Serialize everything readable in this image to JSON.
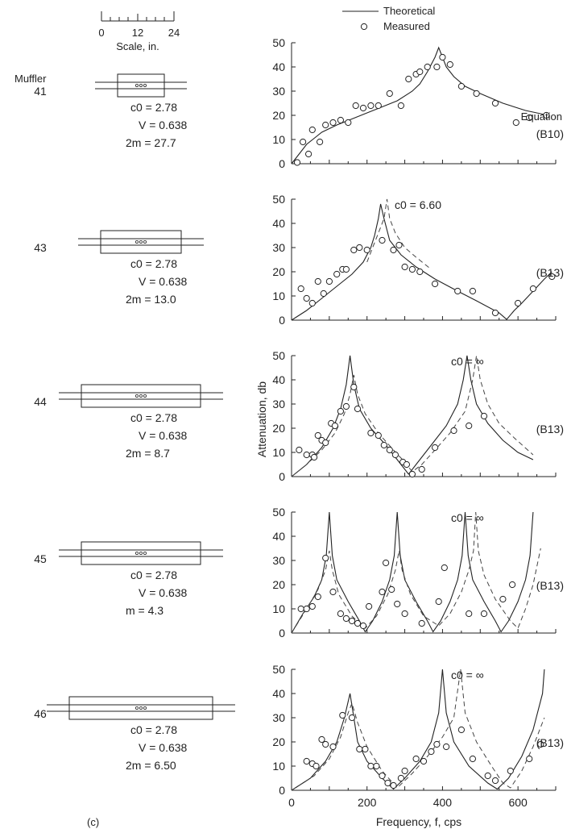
{
  "legend": {
    "theoretical": "Theoretical",
    "measured": "Measured"
  },
  "scale": {
    "ticks": [
      "0",
      "12",
      "24"
    ],
    "label": "Scale, in."
  },
  "muffler_heading": "Muffler",
  "panel_label": "(c)",
  "axes": {
    "ylabel": "Attenuation, db",
    "xlabel": "Frequency, f, cps",
    "xticks": [
      "0",
      "200",
      "400",
      "600"
    ],
    "yticks": [
      "0",
      "10",
      "20",
      "30",
      "40",
      "50"
    ],
    "ylim": [
      0,
      50
    ],
    "xlim": [
      0,
      700
    ]
  },
  "chart_data": [
    {
      "type": "scatter",
      "muffler": "41",
      "params": [
        "c0 = 2.78",
        "V = 0.638",
        "2m = 27.7"
      ],
      "equation": [
        "Equation",
        "(B10)"
      ],
      "annotation": "",
      "theory": [
        [
          0,
          0
        ],
        [
          20,
          4
        ],
        [
          40,
          8
        ],
        [
          60,
          10.5
        ],
        [
          80,
          13
        ],
        [
          120,
          16
        ],
        [
          160,
          18.5
        ],
        [
          200,
          21
        ],
        [
          240,
          23.5
        ],
        [
          280,
          26
        ],
        [
          320,
          30
        ],
        [
          340,
          33
        ],
        [
          360,
          38
        ],
        [
          380,
          44
        ],
        [
          390,
          48
        ],
        [
          400,
          44
        ],
        [
          410,
          40
        ],
        [
          430,
          36
        ],
        [
          460,
          32
        ],
        [
          500,
          29
        ],
        [
          560,
          25
        ],
        [
          620,
          22
        ],
        [
          680,
          20
        ]
      ],
      "dashed": [],
      "measured": [
        [
          15,
          0.5
        ],
        [
          30,
          9
        ],
        [
          45,
          4
        ],
        [
          55,
          14
        ],
        [
          75,
          9
        ],
        [
          90,
          16
        ],
        [
          110,
          17
        ],
        [
          130,
          18
        ],
        [
          150,
          17
        ],
        [
          170,
          24
        ],
        [
          190,
          23
        ],
        [
          210,
          24
        ],
        [
          230,
          24
        ],
        [
          260,
          29
        ],
        [
          290,
          24
        ],
        [
          310,
          35
        ],
        [
          330,
          37
        ],
        [
          340,
          38
        ],
        [
          360,
          40
        ],
        [
          385,
          40
        ],
        [
          400,
          44
        ],
        [
          420,
          41
        ],
        [
          450,
          32
        ],
        [
          490,
          29
        ],
        [
          540,
          25
        ],
        [
          595,
          17
        ],
        [
          630,
          19
        ],
        [
          675,
          20
        ]
      ]
    },
    {
      "type": "scatter",
      "muffler": "43",
      "params": [
        "c0 = 2.78",
        "V = 0.638",
        "2m = 13.0"
      ],
      "equation": [
        "",
        "(B13)"
      ],
      "annotation": "c0 = 6.60",
      "theory": [
        [
          0,
          0
        ],
        [
          40,
          4
        ],
        [
          80,
          9
        ],
        [
          120,
          14
        ],
        [
          160,
          19
        ],
        [
          190,
          24
        ],
        [
          210,
          30
        ],
        [
          220,
          35
        ],
        [
          230,
          42
        ],
        [
          236,
          48
        ],
        [
          245,
          42
        ],
        [
          260,
          33
        ],
        [
          290,
          27
        ],
        [
          330,
          22
        ],
        [
          380,
          17
        ],
        [
          440,
          12
        ],
        [
          490,
          8
        ],
        [
          550,
          3
        ],
        [
          570,
          0.3
        ],
        [
          590,
          4
        ],
        [
          610,
          7
        ],
        [
          640,
          12
        ],
        [
          670,
          17
        ],
        [
          690,
          20
        ]
      ],
      "dashed": [
        [
          200,
          24
        ],
        [
          215,
          30
        ],
        [
          230,
          36
        ],
        [
          245,
          42
        ],
        [
          253,
          50
        ],
        [
          260,
          42
        ],
        [
          275,
          36
        ],
        [
          300,
          30
        ],
        [
          330,
          26
        ],
        [
          370,
          21
        ]
      ],
      "measured": [
        [
          25,
          13
        ],
        [
          40,
          9
        ],
        [
          55,
          7
        ],
        [
          70,
          16
        ],
        [
          85,
          11
        ],
        [
          100,
          16
        ],
        [
          120,
          19
        ],
        [
          135,
          21
        ],
        [
          145,
          21
        ],
        [
          165,
          29
        ],
        [
          180,
          30
        ],
        [
          200,
          29
        ],
        [
          240,
          33
        ],
        [
          270,
          29
        ],
        [
          285,
          31
        ],
        [
          300,
          22
        ],
        [
          320,
          21
        ],
        [
          340,
          20
        ],
        [
          380,
          15
        ],
        [
          440,
          12
        ],
        [
          480,
          12
        ],
        [
          540,
          3
        ],
        [
          600,
          7
        ],
        [
          640,
          13
        ],
        [
          690,
          18
        ]
      ]
    },
    {
      "type": "scatter",
      "muffler": "44",
      "params": [
        "c0 = 2.78",
        "V = 0.638",
        "2m = 8.7"
      ],
      "equation": [
        "",
        "(B13)"
      ],
      "annotation": "c0 = ∞",
      "theory": [
        [
          0,
          0
        ],
        [
          40,
          5
        ],
        [
          80,
          12
        ],
        [
          110,
          20
        ],
        [
          130,
          28
        ],
        [
          145,
          38
        ],
        [
          155,
          50
        ],
        [
          165,
          38
        ],
        [
          180,
          28
        ],
        [
          210,
          20
        ],
        [
          250,
          13
        ],
        [
          290,
          5
        ],
        [
          310,
          1
        ],
        [
          330,
          5
        ],
        [
          370,
          13
        ],
        [
          410,
          21
        ],
        [
          440,
          30
        ],
        [
          455,
          40
        ],
        [
          465,
          50
        ],
        [
          475,
          40
        ],
        [
          490,
          30
        ],
        [
          520,
          22
        ],
        [
          560,
          15
        ],
        [
          600,
          10
        ],
        [
          640,
          7
        ]
      ],
      "dashed": [
        [
          0,
          0
        ],
        [
          40,
          5
        ],
        [
          80,
          11
        ],
        [
          115,
          18
        ],
        [
          140,
          26
        ],
        [
          155,
          34
        ],
        [
          165,
          42
        ],
        [
          175,
          34
        ],
        [
          195,
          26
        ],
        [
          230,
          18
        ],
        [
          270,
          11
        ],
        [
          300,
          6
        ],
        [
          320,
          2
        ],
        [
          345,
          5
        ],
        [
          380,
          11
        ],
        [
          420,
          18
        ],
        [
          460,
          27
        ],
        [
          480,
          40
        ],
        [
          490,
          50
        ],
        [
          500,
          40
        ],
        [
          520,
          30
        ],
        [
          550,
          22
        ],
        [
          590,
          16
        ],
        [
          640,
          9
        ]
      ],
      "measured": [
        [
          20,
          11
        ],
        [
          40,
          9
        ],
        [
          55,
          9
        ],
        [
          60,
          8
        ],
        [
          70,
          17
        ],
        [
          80,
          15
        ],
        [
          90,
          14
        ],
        [
          105,
          22
        ],
        [
          115,
          21
        ],
        [
          130,
          27
        ],
        [
          145,
          29
        ],
        [
          165,
          37
        ],
        [
          175,
          28
        ],
        [
          210,
          18
        ],
        [
          230,
          17
        ],
        [
          245,
          13
        ],
        [
          260,
          11
        ],
        [
          275,
          9
        ],
        [
          295,
          6
        ],
        [
          305,
          5
        ],
        [
          320,
          1
        ],
        [
          345,
          3
        ],
        [
          380,
          12
        ],
        [
          430,
          19
        ],
        [
          470,
          21
        ],
        [
          510,
          25
        ]
      ]
    },
    {
      "type": "scatter",
      "muffler": "45",
      "params": [
        "c0 = 2.78",
        "V = 0.638",
        "m = 4.3"
      ],
      "equation": [
        "",
        "(B13)"
      ],
      "annotation": "c0 = ∞",
      "theory": [
        [
          0,
          0
        ],
        [
          30,
          8
        ],
        [
          60,
          15
        ],
        [
          80,
          22
        ],
        [
          92,
          32
        ],
        [
          100,
          50
        ],
        [
          108,
          32
        ],
        [
          120,
          22
        ],
        [
          150,
          13
        ],
        [
          180,
          5
        ],
        [
          195,
          0.5
        ],
        [
          215,
          5
        ],
        [
          240,
          13
        ],
        [
          260,
          22
        ],
        [
          272,
          32
        ],
        [
          280,
          50
        ],
        [
          288,
          32
        ],
        [
          300,
          22
        ],
        [
          330,
          13
        ],
        [
          360,
          5
        ],
        [
          375,
          0.5
        ],
        [
          395,
          5
        ],
        [
          420,
          13
        ],
        [
          440,
          22
        ],
        [
          452,
          32
        ],
        [
          460,
          50
        ],
        [
          468,
          32
        ],
        [
          480,
          22
        ],
        [
          510,
          13
        ],
        [
          540,
          5
        ],
        [
          555,
          0.5
        ],
        [
          575,
          5
        ],
        [
          600,
          13
        ],
        [
          620,
          22
        ],
        [
          632,
          32
        ],
        [
          640,
          50
        ]
      ],
      "dashed": [
        [
          0,
          0
        ],
        [
          40,
          10
        ],
        [
          70,
          18
        ],
        [
          90,
          26
        ],
        [
          100,
          34
        ],
        [
          108,
          26
        ],
        [
          125,
          16
        ],
        [
          160,
          7
        ],
        [
          195,
          2
        ],
        [
          225,
          7
        ],
        [
          255,
          16
        ],
        [
          275,
          26
        ],
        [
          285,
          34
        ],
        [
          293,
          26
        ],
        [
          315,
          16
        ],
        [
          350,
          7
        ],
        [
          390,
          3
        ],
        [
          420,
          8
        ],
        [
          450,
          17
        ],
        [
          470,
          26
        ],
        [
          482,
          34
        ],
        [
          488,
          50
        ],
        [
          495,
          34
        ],
        [
          510,
          24
        ],
        [
          540,
          14
        ],
        [
          580,
          5
        ],
        [
          600,
          2
        ],
        [
          620,
          10
        ],
        [
          640,
          20
        ],
        [
          660,
          35
        ]
      ],
      "measured": [
        [
          25,
          10
        ],
        [
          40,
          10
        ],
        [
          55,
          11
        ],
        [
          70,
          15
        ],
        [
          90,
          31
        ],
        [
          110,
          17
        ],
        [
          130,
          8
        ],
        [
          145,
          6
        ],
        [
          160,
          5
        ],
        [
          175,
          4
        ],
        [
          190,
          3
        ],
        [
          205,
          11
        ],
        [
          240,
          17
        ],
        [
          250,
          29
        ],
        [
          265,
          18
        ],
        [
          280,
          12
        ],
        [
          300,
          8
        ],
        [
          345,
          4
        ],
        [
          390,
          13
        ],
        [
          405,
          27
        ],
        [
          470,
          8
        ],
        [
          510,
          8
        ],
        [
          560,
          14
        ],
        [
          585,
          20
        ]
      ]
    },
    {
      "type": "scatter",
      "muffler": "46",
      "params": [
        "c0 = 2.78",
        "V = 0.638",
        "2m = 6.50"
      ],
      "equation": [
        "",
        "(B13)"
      ],
      "annotation": "c0 = ∞",
      "theory": [
        [
          0,
          0
        ],
        [
          50,
          5
        ],
        [
          90,
          12
        ],
        [
          120,
          20
        ],
        [
          140,
          30
        ],
        [
          155,
          40
        ],
        [
          160,
          35
        ],
        [
          175,
          20
        ],
        [
          200,
          12
        ],
        [
          240,
          5
        ],
        [
          270,
          0.5
        ],
        [
          300,
          5
        ],
        [
          340,
          12
        ],
        [
          370,
          20
        ],
        [
          390,
          32
        ],
        [
          400,
          50
        ],
        [
          410,
          32
        ],
        [
          430,
          20
        ],
        [
          470,
          10
        ],
        [
          520,
          3
        ],
        [
          545,
          0.5
        ],
        [
          575,
          5
        ],
        [
          610,
          14
        ],
        [
          640,
          25
        ],
        [
          665,
          40
        ],
        [
          670,
          50
        ]
      ],
      "dashed": [
        [
          0,
          0
        ],
        [
          60,
          6
        ],
        [
          100,
          13
        ],
        [
          130,
          22
        ],
        [
          150,
          32
        ],
        [
          160,
          36
        ],
        [
          175,
          28
        ],
        [
          200,
          18
        ],
        [
          240,
          8
        ],
        [
          280,
          1
        ],
        [
          320,
          7
        ],
        [
          360,
          14
        ],
        [
          400,
          22
        ],
        [
          430,
          30
        ],
        [
          448,
          50
        ],
        [
          460,
          32
        ],
        [
          490,
          20
        ],
        [
          530,
          10
        ],
        [
          560,
          3
        ],
        [
          580,
          1
        ],
        [
          610,
          8
        ],
        [
          640,
          18
        ],
        [
          670,
          30
        ]
      ],
      "measured": [
        [
          40,
          12
        ],
        [
          55,
          11
        ],
        [
          65,
          10
        ],
        [
          80,
          21
        ],
        [
          90,
          19
        ],
        [
          110,
          18
        ],
        [
          135,
          31
        ],
        [
          160,
          30
        ],
        [
          180,
          17
        ],
        [
          195,
          17
        ],
        [
          210,
          10
        ],
        [
          225,
          10
        ],
        [
          240,
          6
        ],
        [
          255,
          3
        ],
        [
          270,
          2
        ],
        [
          290,
          5
        ],
        [
          300,
          8
        ],
        [
          330,
          13
        ],
        [
          350,
          12
        ],
        [
          370,
          16
        ],
        [
          385,
          19
        ],
        [
          410,
          18
        ],
        [
          450,
          25
        ],
        [
          480,
          13
        ],
        [
          520,
          6
        ],
        [
          540,
          4
        ],
        [
          580,
          8
        ],
        [
          630,
          13
        ],
        [
          660,
          19
        ]
      ]
    }
  ]
}
